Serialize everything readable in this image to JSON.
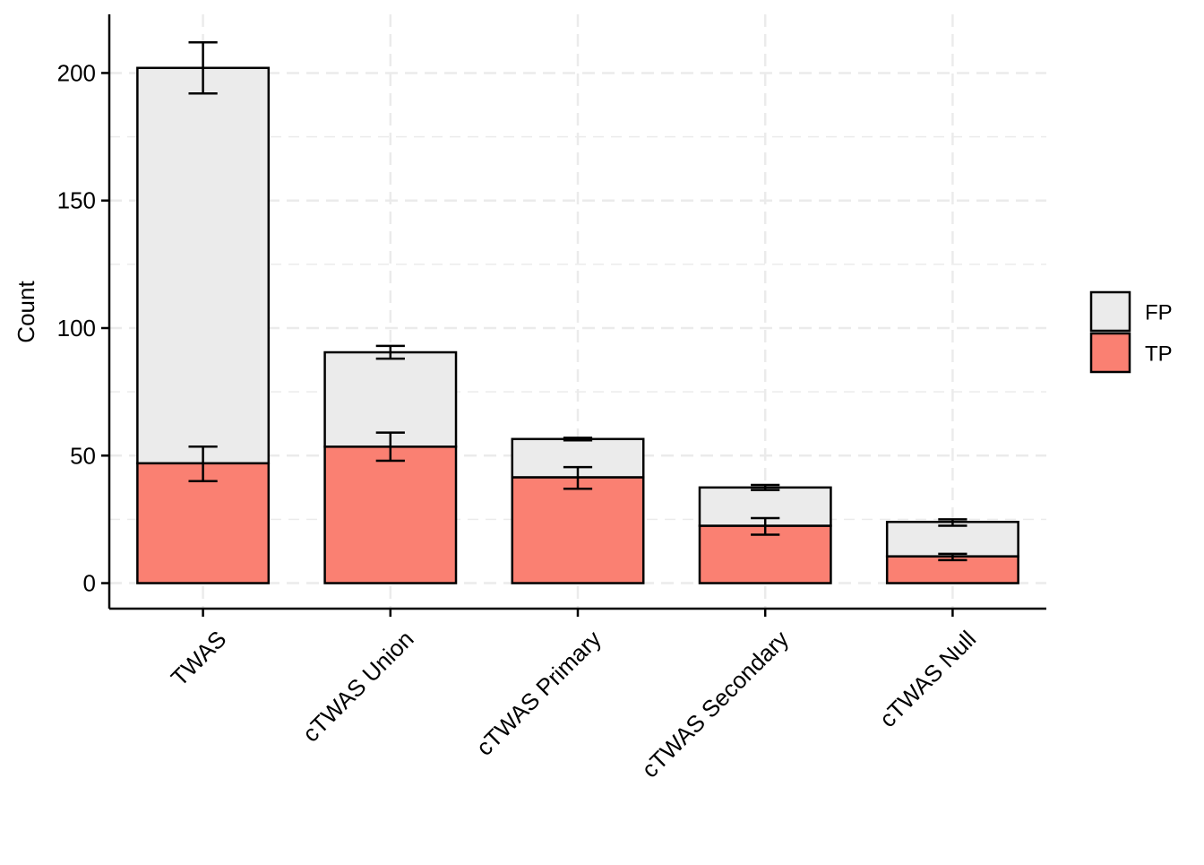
{
  "chart_data": {
    "type": "bar",
    "stacked": true,
    "categories": [
      "TWAS",
      "cTWAS Union",
      "cTWAS Primary",
      "cTWAS Secondary",
      "cTWAS Null"
    ],
    "series": [
      {
        "name": "TP",
        "color": "#fa8072",
        "values": [
          47,
          53.5,
          41.5,
          22.5,
          10.5
        ],
        "error_low": [
          40,
          48,
          37,
          19,
          9
        ],
        "error_high": [
          53.5,
          59,
          45.5,
          25.5,
          11.5
        ]
      },
      {
        "name": "FP",
        "color": "#ebebeb",
        "values": [
          155,
          37,
          15,
          15,
          13.5
        ],
        "error_low": [
          192,
          88,
          56,
          36.5,
          22.5
        ],
        "error_high": [
          212,
          93,
          57,
          38.5,
          25
        ]
      }
    ],
    "ylabel": "Count",
    "xlabel": "",
    "ylim": [
      -10,
      223
    ],
    "yticks": [
      0,
      50,
      100,
      150,
      200
    ],
    "grid": true,
    "legend": {
      "position": "right",
      "order": [
        "FP",
        "TP"
      ]
    }
  }
}
